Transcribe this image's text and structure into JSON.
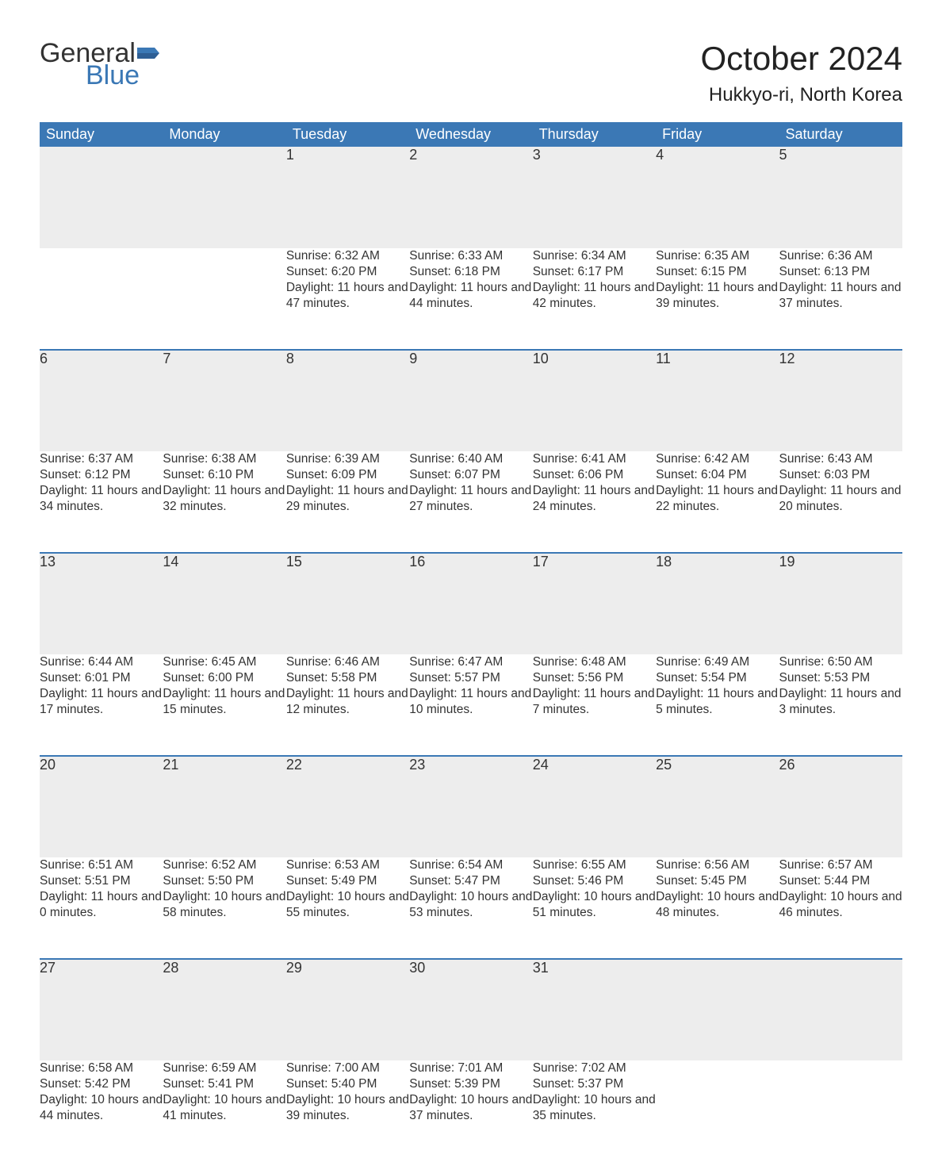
{
  "brand": {
    "word1": "General",
    "word2": "Blue",
    "flag_color": "#3b78b5"
  },
  "title": "October 2024",
  "location": "Hukkyo-ri, North Korea",
  "colors": {
    "header_bg": "#3b78b5",
    "header_text": "#ffffff",
    "daynum_bg": "#ededed",
    "week_divider": "#3b78b5",
    "body_text": "#333333",
    "page_bg": "#ffffff"
  },
  "fonts": {
    "title_size_pt": 32,
    "location_size_pt": 18,
    "header_size_pt": 14,
    "body_size_pt": 12
  },
  "calendar": {
    "type": "table",
    "columns": [
      "Sunday",
      "Monday",
      "Tuesday",
      "Wednesday",
      "Thursday",
      "Friday",
      "Saturday"
    ],
    "weeks": [
      [
        null,
        null,
        {
          "n": "1",
          "sunrise": "6:32 AM",
          "sunset": "6:20 PM",
          "daylight": "11 hours and 47 minutes."
        },
        {
          "n": "2",
          "sunrise": "6:33 AM",
          "sunset": "6:18 PM",
          "daylight": "11 hours and 44 minutes."
        },
        {
          "n": "3",
          "sunrise": "6:34 AM",
          "sunset": "6:17 PM",
          "daylight": "11 hours and 42 minutes."
        },
        {
          "n": "4",
          "sunrise": "6:35 AM",
          "sunset": "6:15 PM",
          "daylight": "11 hours and 39 minutes."
        },
        {
          "n": "5",
          "sunrise": "6:36 AM",
          "sunset": "6:13 PM",
          "daylight": "11 hours and 37 minutes."
        }
      ],
      [
        {
          "n": "6",
          "sunrise": "6:37 AM",
          "sunset": "6:12 PM",
          "daylight": "11 hours and 34 minutes."
        },
        {
          "n": "7",
          "sunrise": "6:38 AM",
          "sunset": "6:10 PM",
          "daylight": "11 hours and 32 minutes."
        },
        {
          "n": "8",
          "sunrise": "6:39 AM",
          "sunset": "6:09 PM",
          "daylight": "11 hours and 29 minutes."
        },
        {
          "n": "9",
          "sunrise": "6:40 AM",
          "sunset": "6:07 PM",
          "daylight": "11 hours and 27 minutes."
        },
        {
          "n": "10",
          "sunrise": "6:41 AM",
          "sunset": "6:06 PM",
          "daylight": "11 hours and 24 minutes."
        },
        {
          "n": "11",
          "sunrise": "6:42 AM",
          "sunset": "6:04 PM",
          "daylight": "11 hours and 22 minutes."
        },
        {
          "n": "12",
          "sunrise": "6:43 AM",
          "sunset": "6:03 PM",
          "daylight": "11 hours and 20 minutes."
        }
      ],
      [
        {
          "n": "13",
          "sunrise": "6:44 AM",
          "sunset": "6:01 PM",
          "daylight": "11 hours and 17 minutes."
        },
        {
          "n": "14",
          "sunrise": "6:45 AM",
          "sunset": "6:00 PM",
          "daylight": "11 hours and 15 minutes."
        },
        {
          "n": "15",
          "sunrise": "6:46 AM",
          "sunset": "5:58 PM",
          "daylight": "11 hours and 12 minutes."
        },
        {
          "n": "16",
          "sunrise": "6:47 AM",
          "sunset": "5:57 PM",
          "daylight": "11 hours and 10 minutes."
        },
        {
          "n": "17",
          "sunrise": "6:48 AM",
          "sunset": "5:56 PM",
          "daylight": "11 hours and 7 minutes."
        },
        {
          "n": "18",
          "sunrise": "6:49 AM",
          "sunset": "5:54 PM",
          "daylight": "11 hours and 5 minutes."
        },
        {
          "n": "19",
          "sunrise": "6:50 AM",
          "sunset": "5:53 PM",
          "daylight": "11 hours and 3 minutes."
        }
      ],
      [
        {
          "n": "20",
          "sunrise": "6:51 AM",
          "sunset": "5:51 PM",
          "daylight": "11 hours and 0 minutes."
        },
        {
          "n": "21",
          "sunrise": "6:52 AM",
          "sunset": "5:50 PM",
          "daylight": "10 hours and 58 minutes."
        },
        {
          "n": "22",
          "sunrise": "6:53 AM",
          "sunset": "5:49 PM",
          "daylight": "10 hours and 55 minutes."
        },
        {
          "n": "23",
          "sunrise": "6:54 AM",
          "sunset": "5:47 PM",
          "daylight": "10 hours and 53 minutes."
        },
        {
          "n": "24",
          "sunrise": "6:55 AM",
          "sunset": "5:46 PM",
          "daylight": "10 hours and 51 minutes."
        },
        {
          "n": "25",
          "sunrise": "6:56 AM",
          "sunset": "5:45 PM",
          "daylight": "10 hours and 48 minutes."
        },
        {
          "n": "26",
          "sunrise": "6:57 AM",
          "sunset": "5:44 PM",
          "daylight": "10 hours and 46 minutes."
        }
      ],
      [
        {
          "n": "27",
          "sunrise": "6:58 AM",
          "sunset": "5:42 PM",
          "daylight": "10 hours and 44 minutes."
        },
        {
          "n": "28",
          "sunrise": "6:59 AM",
          "sunset": "5:41 PM",
          "daylight": "10 hours and 41 minutes."
        },
        {
          "n": "29",
          "sunrise": "7:00 AM",
          "sunset": "5:40 PM",
          "daylight": "10 hours and 39 minutes."
        },
        {
          "n": "30",
          "sunrise": "7:01 AM",
          "sunset": "5:39 PM",
          "daylight": "10 hours and 37 minutes."
        },
        {
          "n": "31",
          "sunrise": "7:02 AM",
          "sunset": "5:37 PM",
          "daylight": "10 hours and 35 minutes."
        },
        null,
        null
      ]
    ],
    "labels": {
      "sunrise": "Sunrise: ",
      "sunset": "Sunset: ",
      "daylight": "Daylight: "
    }
  }
}
